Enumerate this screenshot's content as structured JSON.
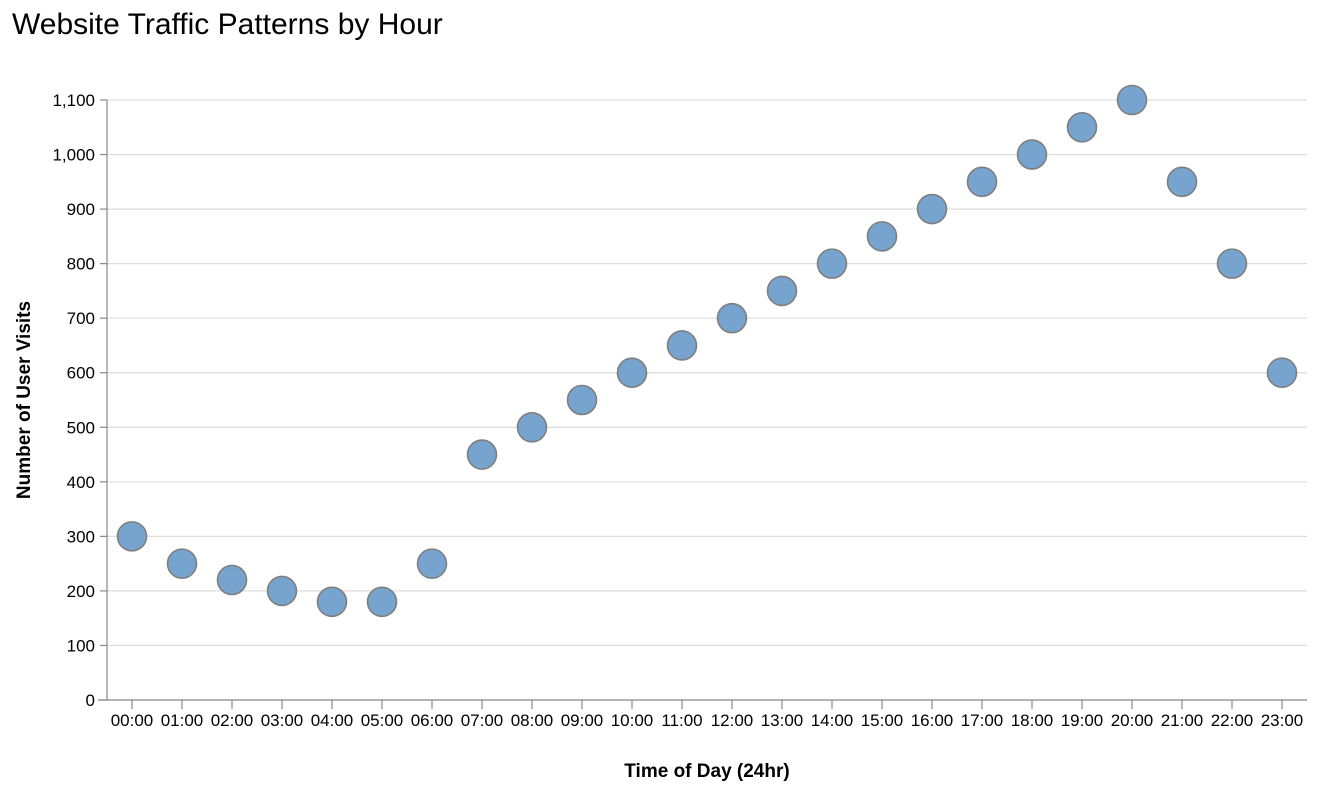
{
  "chart_data": {
    "type": "scatter",
    "title": "Website Traffic Patterns by Hour",
    "xlabel": "Time of Day (24hr)",
    "ylabel": "Number of User Visits",
    "categories": [
      "00:00",
      "01:00",
      "02:00",
      "03:00",
      "04:00",
      "05:00",
      "06:00",
      "07:00",
      "08:00",
      "09:00",
      "10:00",
      "11:00",
      "12:00",
      "13:00",
      "14:00",
      "15:00",
      "16:00",
      "17:00",
      "18:00",
      "19:00",
      "20:00",
      "21:00",
      "22:00",
      "23:00"
    ],
    "values": [
      300,
      250,
      220,
      200,
      180,
      180,
      250,
      450,
      500,
      550,
      600,
      650,
      700,
      750,
      800,
      850,
      900,
      950,
      1000,
      1050,
      1100,
      950,
      800,
      600
    ],
    "ylim": [
      0,
      1100
    ],
    "yticks": [
      0,
      100,
      200,
      300,
      400,
      500,
      600,
      700,
      800,
      900,
      1000,
      1100
    ],
    "ytick_labels": [
      "0",
      "100",
      "200",
      "300",
      "400",
      "500",
      "600",
      "700",
      "800",
      "900",
      "1,000",
      "1,100"
    ],
    "grid": true,
    "point_color": "#6f9fcb",
    "point_stroke": "#7f7f7f",
    "legend": "none"
  }
}
